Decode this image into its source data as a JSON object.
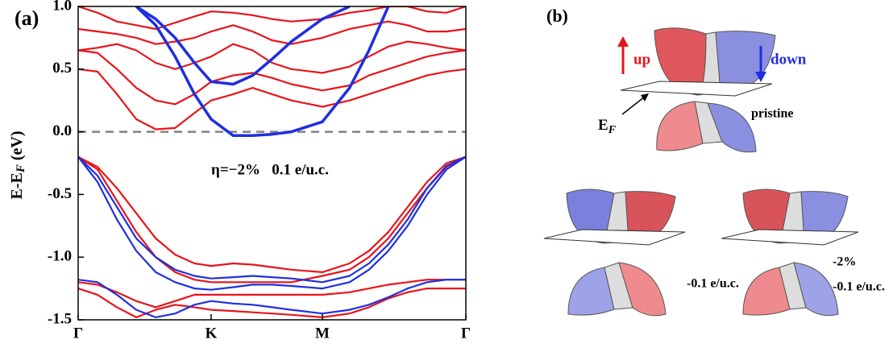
{
  "chart_data": {
    "type": "line",
    "panel_label": "(a)",
    "ylabel": [
      "E-E",
      "F",
      " (eV)"
    ],
    "annotation": "η=−2%   0.1 e/u.c.",
    "x": [
      0,
      0.05,
      0.1,
      0.15,
      0.2,
      0.25,
      0.3,
      0.343,
      0.4,
      0.45,
      0.5,
      0.55,
      0.63,
      0.7,
      0.75,
      0.8,
      0.85,
      0.9,
      0.95,
      1
    ],
    "xlim": [
      0,
      1
    ],
    "xticks": [
      {
        "value": 0,
        "label": "Γ"
      },
      {
        "value": 0.343,
        "label": "K"
      },
      {
        "value": 0.63,
        "label": "M"
      },
      {
        "value": 1,
        "label": "Γ"
      }
    ],
    "ylim": [
      -1.5,
      1.0
    ],
    "yticks": [
      -1.5,
      {
        "value": -1.0,
        "label": "-1.0"
      },
      -0.5,
      {
        "value": 0.0,
        "label": "0.0"
      },
      0.5,
      {
        "value": 1.0,
        "label": "1.0"
      }
    ],
    "reference_line": 0,
    "series": [
      {
        "color": "#e8141b",
        "values": [
          -0.2,
          -0.28,
          -0.45,
          -0.65,
          -0.85,
          -0.98,
          -1.05,
          -1.07,
          -1.05,
          -1.06,
          -1.08,
          -1.1,
          -1.12,
          -1.05,
          -0.95,
          -0.8,
          -0.6,
          -0.4,
          -0.25,
          -0.2
        ]
      },
      {
        "color": "#e8141b",
        "values": [
          -0.2,
          -0.3,
          -0.55,
          -0.8,
          -1.0,
          -1.12,
          -1.18,
          -1.2,
          -1.2,
          -1.2,
          -1.2,
          -1.2,
          -1.15,
          -1.1,
          -1.0,
          -0.85,
          -0.65,
          -0.45,
          -0.28,
          -0.2
        ]
      },
      {
        "color": "#e8141b",
        "values": [
          -1.2,
          -1.22,
          -1.28,
          -1.35,
          -1.4,
          -1.35,
          -1.3,
          -1.3,
          -1.3,
          -1.3,
          -1.3,
          -1.3,
          -1.3,
          -1.28,
          -1.25,
          -1.22,
          -1.2,
          -1.18,
          -1.18,
          -1.18
        ]
      },
      {
        "color": "#e8141b",
        "values": [
          -1.25,
          -1.3,
          -1.4,
          -1.48,
          -1.42,
          -1.38,
          -1.4,
          -1.42,
          -1.43,
          -1.44,
          -1.45,
          -1.46,
          -1.48,
          -1.45,
          -1.4,
          -1.33,
          -1.28,
          -1.25,
          -1.25,
          -1.25
        ]
      },
      {
        "color": "#e8141b",
        "values": [
          0.5,
          0.48,
          0.3,
          0.1,
          0.02,
          0.03,
          0.15,
          0.25,
          0.3,
          0.35,
          0.3,
          0.25,
          0.2,
          0.25,
          0.3,
          0.35,
          0.4,
          0.45,
          0.48,
          0.5
        ]
      },
      {
        "color": "#e8141b",
        "values": [
          0.65,
          0.63,
          0.5,
          0.35,
          0.25,
          0.22,
          0.3,
          0.4,
          0.45,
          0.47,
          0.43,
          0.38,
          0.33,
          0.37,
          0.45,
          0.5,
          0.55,
          0.6,
          0.63,
          0.65
        ]
      },
      {
        "color": "#e8141b",
        "values": [
          0.65,
          0.67,
          0.7,
          0.65,
          0.55,
          0.5,
          0.55,
          0.6,
          0.7,
          0.65,
          0.55,
          0.5,
          0.47,
          0.52,
          0.6,
          0.68,
          0.72,
          0.7,
          0.67,
          0.65
        ]
      },
      {
        "color": "#e8141b",
        "values": [
          0.82,
          0.8,
          0.78,
          0.75,
          0.7,
          0.72,
          0.75,
          0.8,
          0.85,
          0.8,
          0.73,
          0.7,
          0.75,
          0.82,
          0.85,
          0.88,
          0.85,
          0.8,
          0.8,
          0.82
        ]
      },
      {
        "color": "#e8141b",
        "values": [
          1.0,
          0.95,
          0.88,
          0.85,
          0.82,
          0.87,
          0.92,
          0.96,
          0.95,
          0.93,
          0.9,
          0.88,
          0.9,
          0.95,
          0.97,
          1.0,
          1.0,
          0.96,
          0.95,
          1.0
        ]
      },
      {
        "color": "#1f2fe0",
        "values": [
          -0.2,
          -0.35,
          -0.6,
          -0.85,
          -1.0,
          -1.1,
          -1.15,
          -1.17,
          -1.16,
          -1.15,
          -1.16,
          -1.17,
          -1.2,
          -1.15,
          -1.05,
          -0.9,
          -0.7,
          -0.45,
          -0.27,
          -0.2
        ]
      },
      {
        "color": "#1f2fe0",
        "values": [
          -0.2,
          -0.4,
          -0.7,
          -0.95,
          -1.12,
          -1.2,
          -1.25,
          -1.26,
          -1.24,
          -1.22,
          -1.22,
          -1.23,
          -1.25,
          -1.2,
          -1.1,
          -0.95,
          -0.75,
          -0.5,
          -0.3,
          -0.2
        ]
      },
      {
        "color": "#1f2fe0",
        "values": [
          -1.18,
          -1.2,
          -1.3,
          -1.42,
          -1.48,
          -1.45,
          -1.38,
          -1.35,
          -1.37,
          -1.38,
          -1.4,
          -1.42,
          -1.45,
          -1.42,
          -1.38,
          -1.32,
          -1.25,
          -1.2,
          -1.18,
          -1.18
        ]
      },
      {
        "color": "#1f2fe0",
        "values": [
          null,
          null,
          null,
          1.0,
          0.85,
          0.6,
          0.3,
          0.1,
          -0.03,
          -0.03,
          -0.02,
          0.0,
          0.08,
          0.35,
          0.65,
          1.0,
          null,
          null,
          null,
          null
        ]
      },
      {
        "color": "#1f2fe0",
        "values": [
          null,
          null,
          null,
          1.0,
          0.9,
          0.75,
          0.55,
          0.4,
          0.38,
          0.45,
          0.58,
          0.72,
          0.9,
          1.0,
          null,
          null,
          null,
          null,
          null,
          null
        ]
      }
    ]
  },
  "schematic": {
    "panel_label": "(b)",
    "up": "up",
    "down": "down",
    "fermi": [
      "E",
      "F"
    ],
    "pristine": "pristine",
    "doped": "-0.1 e/u.c.",
    "strained": [
      "-2%",
      "-0.1 e/u.c."
    ]
  }
}
